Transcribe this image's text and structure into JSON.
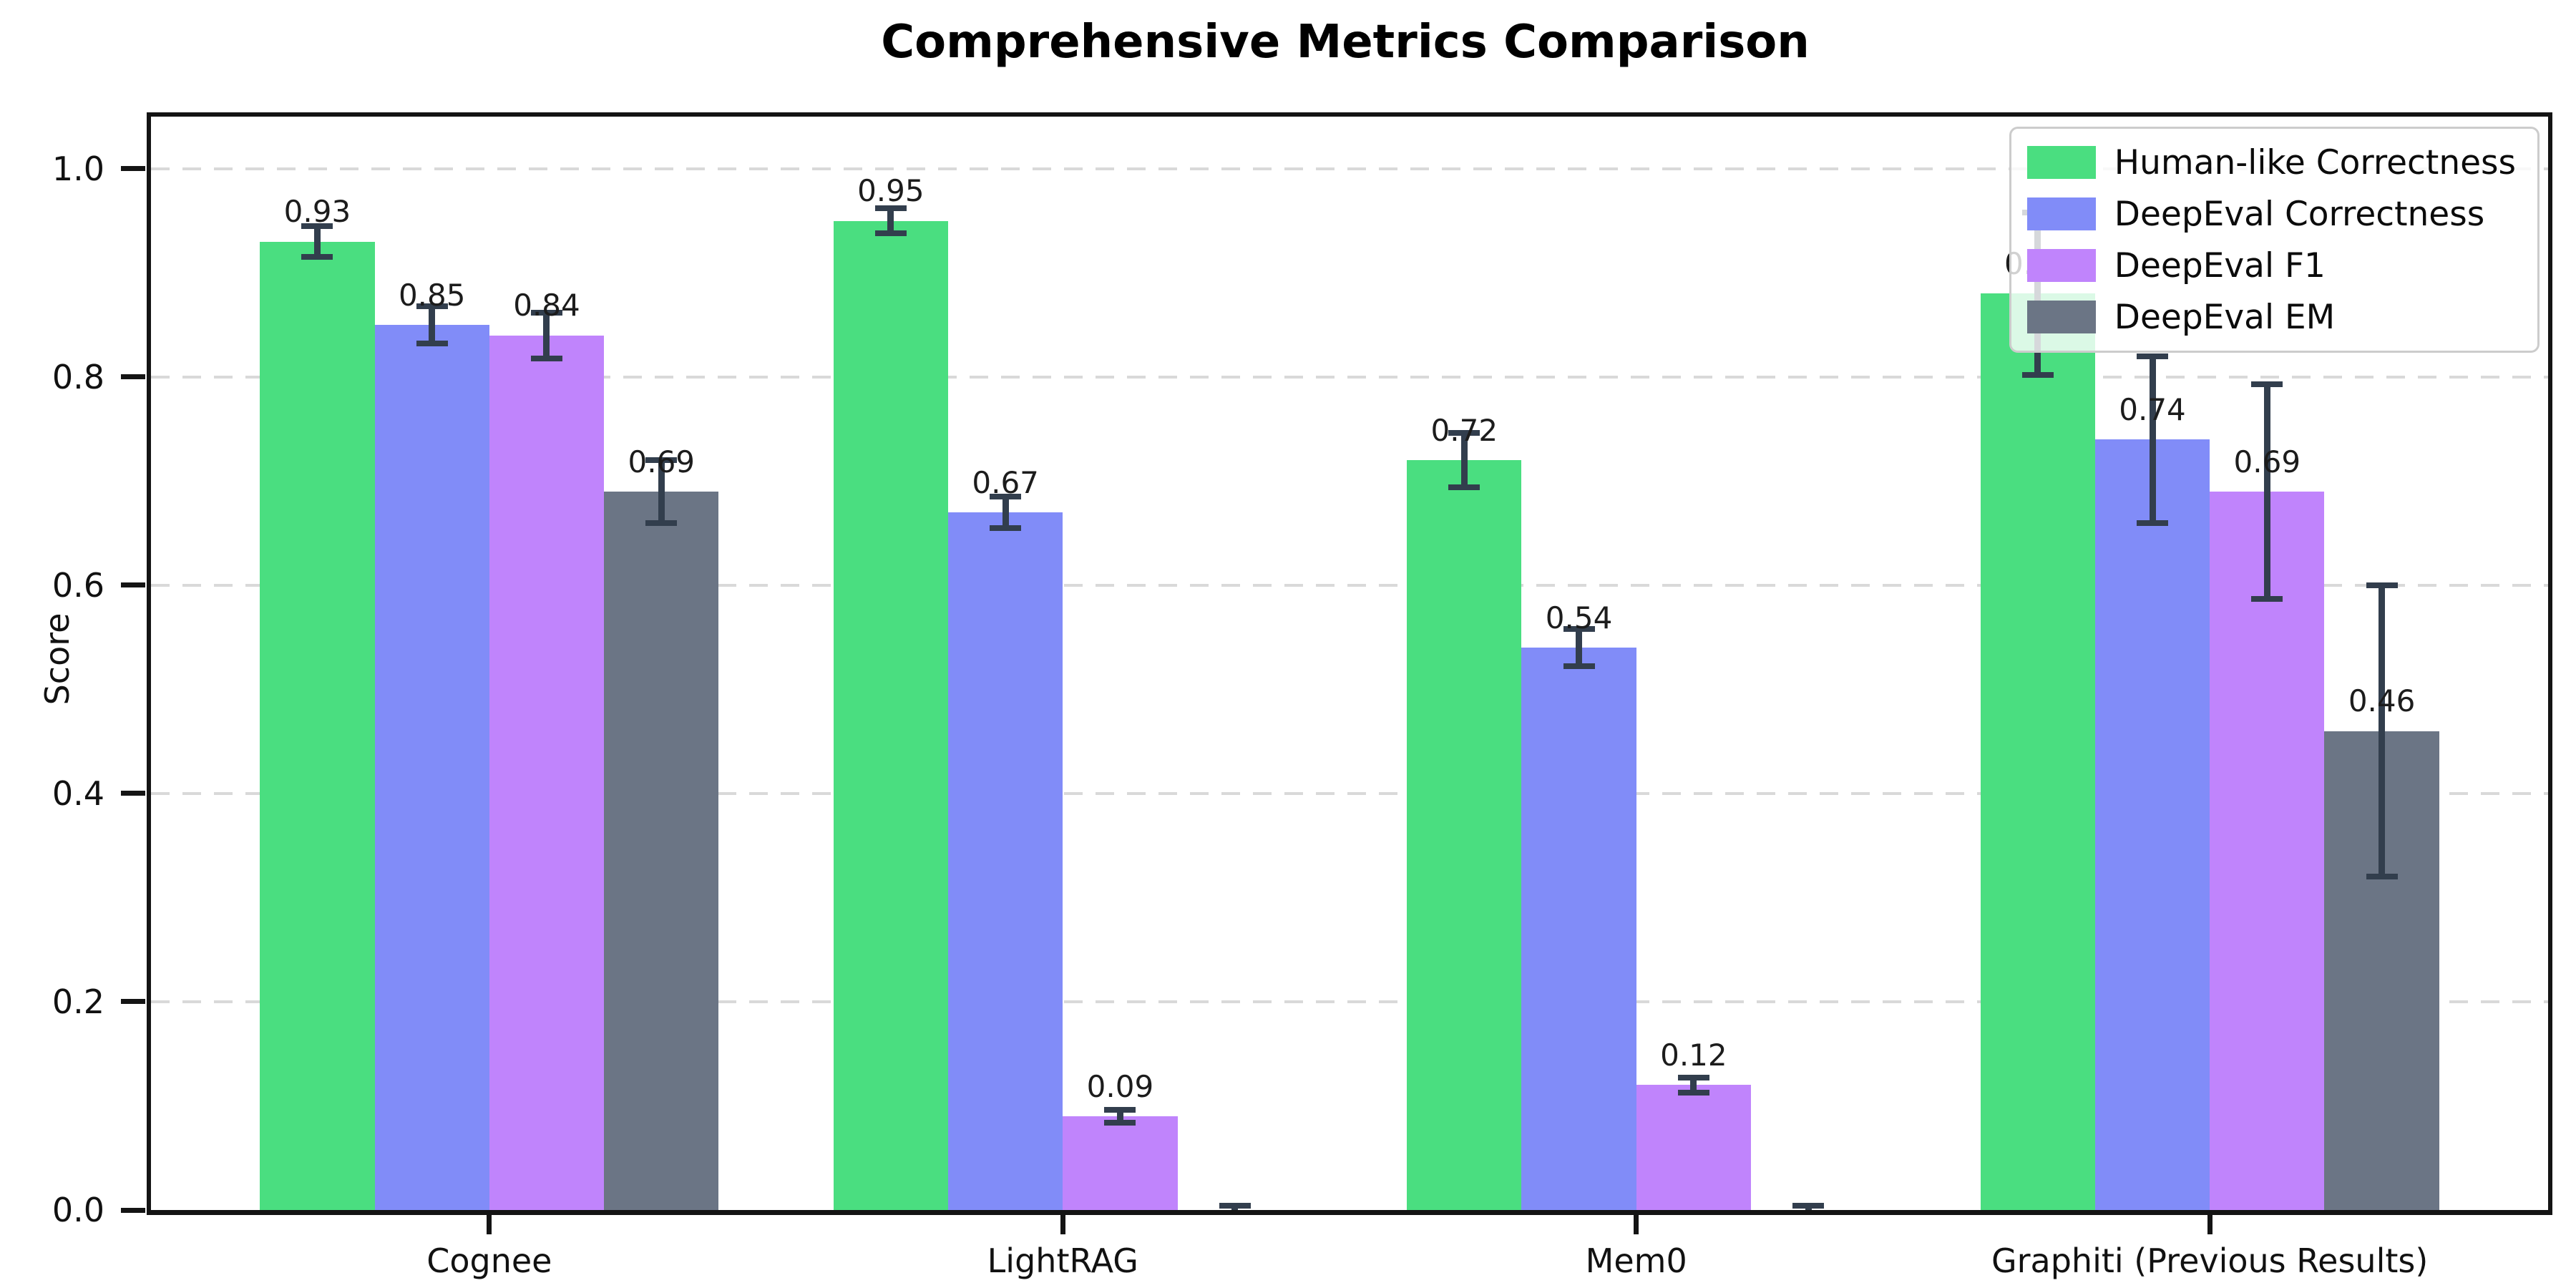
{
  "figure": {
    "background": "#ffffff"
  },
  "chart_data": {
    "type": "bar",
    "title": "Comprehensive Metrics Comparison",
    "xlabel": "",
    "ylabel": "Score",
    "categories": [
      "Cognee",
      "LightRAG",
      "Mem0",
      "Graphiti (Previous Results)"
    ],
    "series": [
      {
        "name": "Human-like Correctness",
        "color": "#4ade80",
        "values": [
          0.93,
          0.95,
          0.72,
          0.88
        ],
        "errors": [
          0.015,
          0.012,
          0.026,
          0.078
        ],
        "bar_labels": [
          "0.93",
          "0.95",
          "0.72",
          "0.88"
        ]
      },
      {
        "name": "DeepEval Correctness",
        "color": "#818cf8",
        "values": [
          0.85,
          0.67,
          0.54,
          0.74
        ],
        "errors": [
          0.018,
          0.015,
          0.018,
          0.08
        ],
        "bar_labels": [
          "0.85",
          "0.67",
          "0.54",
          "0.74"
        ]
      },
      {
        "name": "DeepEval F1",
        "color": "#c084fc",
        "values": [
          0.84,
          0.09,
          0.12,
          0.69
        ],
        "errors": [
          0.022,
          0.006,
          0.007,
          0.103
        ],
        "bar_labels": [
          "0.84",
          "0.09",
          "0.12",
          "0.69"
        ]
      },
      {
        "name": "DeepEval EM",
        "color": "#6b7585",
        "values": [
          0.69,
          0.0,
          0.0,
          0.46
        ],
        "errors": [
          0.03,
          0.004,
          0.004,
          0.14
        ],
        "bar_labels": [
          "0.69",
          "",
          "",
          "0.46"
        ]
      }
    ],
    "yticks": [
      "0.0",
      "0.2",
      "0.4",
      "0.6",
      "0.8",
      "1.0"
    ],
    "ytick_values": [
      0,
      0.2,
      0.4,
      0.6,
      0.8,
      1.0
    ],
    "ylim": [
      0,
      1.05
    ],
    "grid": {
      "axis": "y",
      "style": "dashed",
      "color": "#d9d9d9"
    },
    "legend": {
      "position": "upper right"
    },
    "error_bar_color": "#323e4d",
    "spine_color": "#141414",
    "label_color": "#1c1c1c"
  }
}
